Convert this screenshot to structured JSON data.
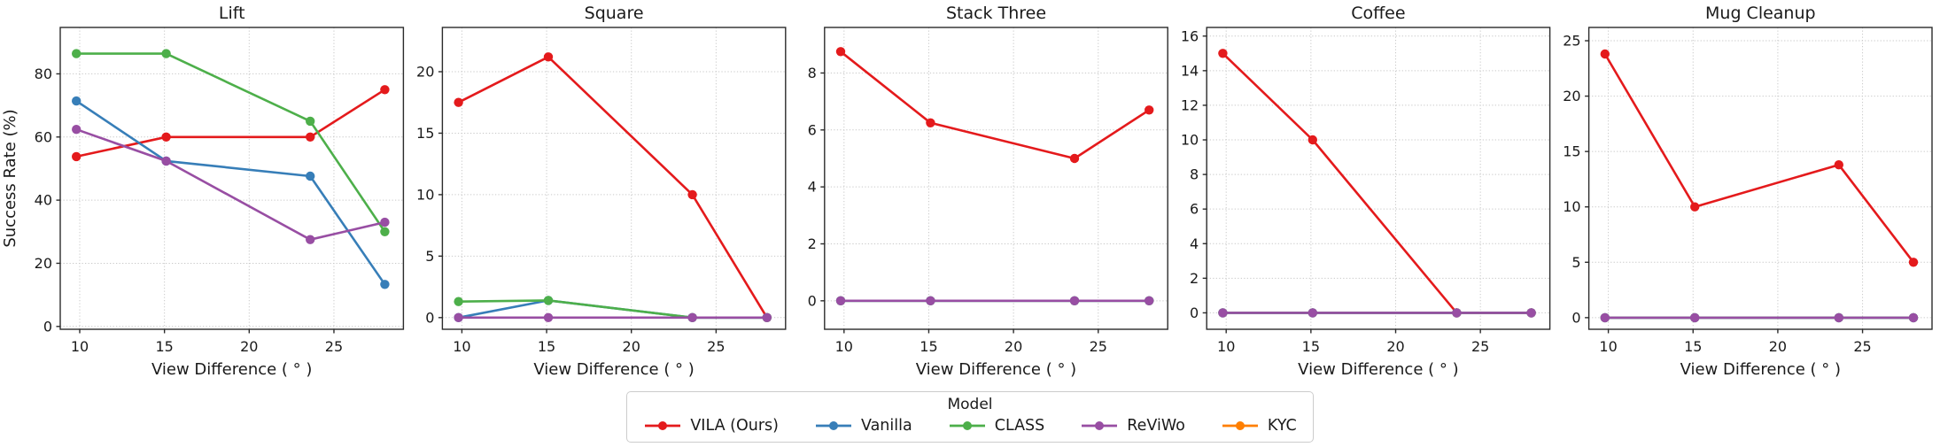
{
  "figure": {
    "ylabel": "Success Rate (%)",
    "xlabel": "View Difference ( ° )"
  },
  "legend": {
    "title": "Model",
    "entries": [
      {
        "label": "VILA (Ours)",
        "color": "#e41a1c"
      },
      {
        "label": "Vanilla",
        "color": "#377eb8"
      },
      {
        "label": "CLASS",
        "color": "#4daf4a"
      },
      {
        "label": "ReViWo",
        "color": "#984ea3"
      },
      {
        "label": "KYC",
        "color": "#ff7f00"
      }
    ]
  },
  "chart_data": [
    {
      "type": "line",
      "title": "Lift",
      "xlabel": "View Difference ( ° )",
      "ylabel": "Success Rate (%)",
      "x": [
        9.8,
        15.1,
        23.6,
        28.0
      ],
      "xticks": [
        10,
        15,
        20,
        25
      ],
      "xlim": [
        8.85,
        29.1
      ],
      "yticks": [
        0,
        20,
        40,
        60,
        80
      ],
      "ylim": [
        -0.9,
        94.7
      ],
      "grid": true,
      "legend_position": "figure-bottom",
      "series": [
        {
          "name": "VILA (Ours)",
          "color": "#e41a1c",
          "values": [
            53.8,
            60,
            60,
            75
          ]
        },
        {
          "name": "Vanilla",
          "color": "#377eb8",
          "values": [
            71.4,
            52.4,
            47.6,
            13.3
          ]
        },
        {
          "name": "CLASS",
          "color": "#4daf4a",
          "values": [
            86.4,
            86.4,
            65,
            30
          ]
        },
        {
          "name": "ReViWo",
          "color": "#984ea3",
          "values": [
            62.4,
            52.4,
            27.5,
            33
          ]
        },
        {
          "name": "KYC",
          "color": "#ff7f00",
          "values": null
        }
      ]
    },
    {
      "type": "line",
      "title": "Square",
      "xlabel": "View Difference ( ° )",
      "x": [
        9.8,
        15.1,
        23.6,
        28.0
      ],
      "xticks": [
        10,
        15,
        20,
        25
      ],
      "xlim": [
        8.85,
        29.1
      ],
      "yticks": [
        0,
        5,
        10,
        15,
        20
      ],
      "ylim": [
        -0.95,
        23.6
      ],
      "grid": true,
      "series": [
        {
          "name": "VILA (Ours)",
          "color": "#e41a1c",
          "values": [
            17.5,
            21.2,
            10,
            0
          ]
        },
        {
          "name": "Vanilla",
          "color": "#377eb8",
          "values": [
            0,
            1.4,
            0,
            0
          ]
        },
        {
          "name": "CLASS",
          "color": "#4daf4a",
          "values": [
            1.3,
            1.4,
            0,
            0
          ]
        },
        {
          "name": "ReViWo",
          "color": "#984ea3",
          "values": [
            0,
            0,
            0,
            0
          ]
        },
        {
          "name": "KYC",
          "color": "#ff7f00",
          "values": null
        }
      ]
    },
    {
      "type": "line",
      "title": "Stack Three",
      "xlabel": "View Difference ( ° )",
      "x": [
        9.8,
        15.1,
        23.6,
        28.0
      ],
      "xticks": [
        10,
        15,
        20,
        25
      ],
      "xlim": [
        8.85,
        29.1
      ],
      "yticks": [
        0,
        2,
        4,
        6,
        8
      ],
      "ylim": [
        -1.0,
        9.6
      ],
      "grid": true,
      "series": [
        {
          "name": "VILA (Ours)",
          "color": "#e41a1c",
          "values": [
            8.75,
            6.25,
            5.0,
            6.7
          ]
        },
        {
          "name": "Vanilla",
          "color": "#377eb8",
          "values": [
            0,
            0,
            0,
            0
          ]
        },
        {
          "name": "CLASS",
          "color": "#4daf4a",
          "values": [
            0,
            0,
            0,
            0
          ]
        },
        {
          "name": "ReViWo",
          "color": "#984ea3",
          "values": [
            0,
            0,
            0,
            0
          ]
        },
        {
          "name": "KYC",
          "color": "#ff7f00",
          "values": null
        }
      ]
    },
    {
      "type": "line",
      "title": "Coffee",
      "xlabel": "View Difference ( ° )",
      "x": [
        9.8,
        15.1,
        23.6,
        28.0
      ],
      "xticks": [
        10,
        15,
        20,
        25
      ],
      "xlim": [
        8.85,
        29.1
      ],
      "yticks": [
        0,
        2,
        4,
        6,
        8,
        10,
        12,
        14,
        16
      ],
      "ylim": [
        -0.95,
        16.5
      ],
      "grid": true,
      "series": [
        {
          "name": "VILA (Ours)",
          "color": "#e41a1c",
          "values": [
            15,
            10,
            0,
            0
          ]
        },
        {
          "name": "Vanilla",
          "color": "#377eb8",
          "values": [
            0,
            0,
            0,
            0
          ]
        },
        {
          "name": "CLASS",
          "color": "#4daf4a",
          "values": [
            0,
            0,
            0,
            0
          ]
        },
        {
          "name": "ReViWo",
          "color": "#984ea3",
          "values": [
            0,
            0,
            0,
            0
          ]
        },
        {
          "name": "KYC",
          "color": "#ff7f00",
          "values": null
        }
      ]
    },
    {
      "type": "line",
      "title": "Mug Cleanup",
      "xlabel": "View Difference ( ° )",
      "x": [
        9.8,
        15.1,
        23.6,
        28.0
      ],
      "xticks": [
        10,
        15,
        20,
        25
      ],
      "xlim": [
        8.85,
        29.1
      ],
      "yticks": [
        0,
        5,
        10,
        15,
        20,
        25
      ],
      "ylim": [
        -1.05,
        26.2
      ],
      "grid": true,
      "series": [
        {
          "name": "VILA (Ours)",
          "color": "#e41a1c",
          "values": [
            23.8,
            10,
            13.8,
            5
          ]
        },
        {
          "name": "Vanilla",
          "color": "#377eb8",
          "values": [
            0,
            0,
            0,
            0
          ]
        },
        {
          "name": "CLASS",
          "color": "#4daf4a",
          "values": [
            0,
            0,
            0,
            0
          ]
        },
        {
          "name": "ReViWo",
          "color": "#984ea3",
          "values": [
            0,
            0,
            0,
            0
          ]
        },
        {
          "name": "KYC",
          "color": "#ff7f00",
          "values": null
        }
      ]
    }
  ]
}
